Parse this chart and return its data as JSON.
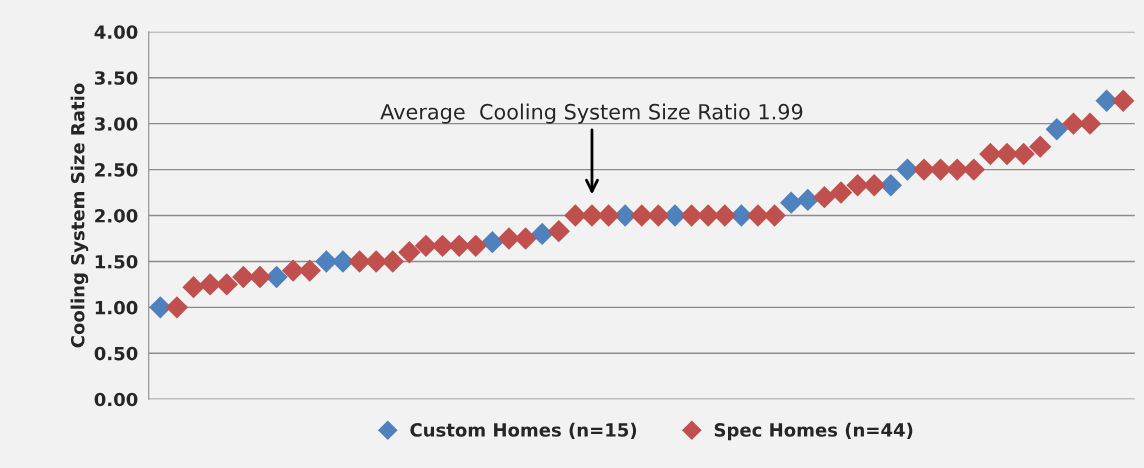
{
  "chart_data": {
    "type": "scatter",
    "ylabel": "Cooling System Size Ratio",
    "categories": [
      null,
      null,
      null,
      null,
      null,
      null,
      null,
      null,
      null,
      null,
      null,
      null,
      null,
      null,
      null,
      null,
      null,
      null,
      null,
      null,
      null,
      null,
      null,
      null,
      null,
      null,
      null,
      null,
      null,
      null,
      null,
      null,
      null,
      null,
      null,
      null,
      null,
      null,
      null,
      null,
      null,
      null,
      null,
      null,
      null,
      null,
      null,
      null,
      null,
      null,
      null,
      null,
      null,
      null,
      null,
      null,
      null,
      null,
      null
    ],
    "series": [
      {
        "name": "Custom Homes (n=15)",
        "color": "#4f81bd",
        "values": [
          1.0,
          null,
          null,
          null,
          null,
          null,
          null,
          1.33,
          null,
          null,
          1.5,
          1.5,
          null,
          null,
          null,
          null,
          null,
          null,
          null,
          null,
          1.71,
          null,
          null,
          1.8,
          null,
          null,
          null,
          null,
          2.0,
          null,
          null,
          2.0,
          null,
          null,
          null,
          2.0,
          null,
          null,
          2.14,
          2.17,
          null,
          null,
          null,
          null,
          2.33,
          2.5,
          null,
          null,
          null,
          null,
          null,
          null,
          null,
          null,
          2.94,
          null,
          null,
          3.25,
          null
        ]
      },
      {
        "name": "Spec Homes (n=44)",
        "color": "#c0504d",
        "values": [
          null,
          1.0,
          1.22,
          1.25,
          1.25,
          1.33,
          1.33,
          null,
          1.4,
          1.4,
          null,
          null,
          1.5,
          1.5,
          1.5,
          1.6,
          1.67,
          1.67,
          1.67,
          1.67,
          null,
          1.75,
          1.75,
          null,
          1.83,
          2.0,
          2.0,
          2.0,
          null,
          2.0,
          2.0,
          null,
          2.0,
          2.0,
          2.0,
          null,
          2.0,
          2.0,
          null,
          null,
          2.2,
          2.25,
          2.33,
          2.33,
          null,
          null,
          2.5,
          2.5,
          2.5,
          2.5,
          2.67,
          2.67,
          2.67,
          2.75,
          null,
          3.0,
          3.0,
          null,
          3.25
        ]
      }
    ],
    "ylim": [
      0,
      4
    ],
    "yticks": [
      {
        "value": 0,
        "label": "0.00"
      },
      {
        "value": 0.5,
        "label": "0.50"
      },
      {
        "value": 1,
        "label": "1.00"
      },
      {
        "value": 1.5,
        "label": "1.50"
      },
      {
        "value": 2,
        "label": "2.00"
      },
      {
        "value": 2.5,
        "label": "2.50"
      },
      {
        "value": 3,
        "label": "3.00"
      },
      {
        "value": 3.5,
        "label": "3.50"
      },
      {
        "value": 4,
        "label": "4.00"
      }
    ],
    "annotations": [
      "Average  Cooling System Size Ratio 1.99"
    ],
    "grid": "y",
    "legend": "bottom",
    "marker": "diamond",
    "tick_labels": "y"
  }
}
